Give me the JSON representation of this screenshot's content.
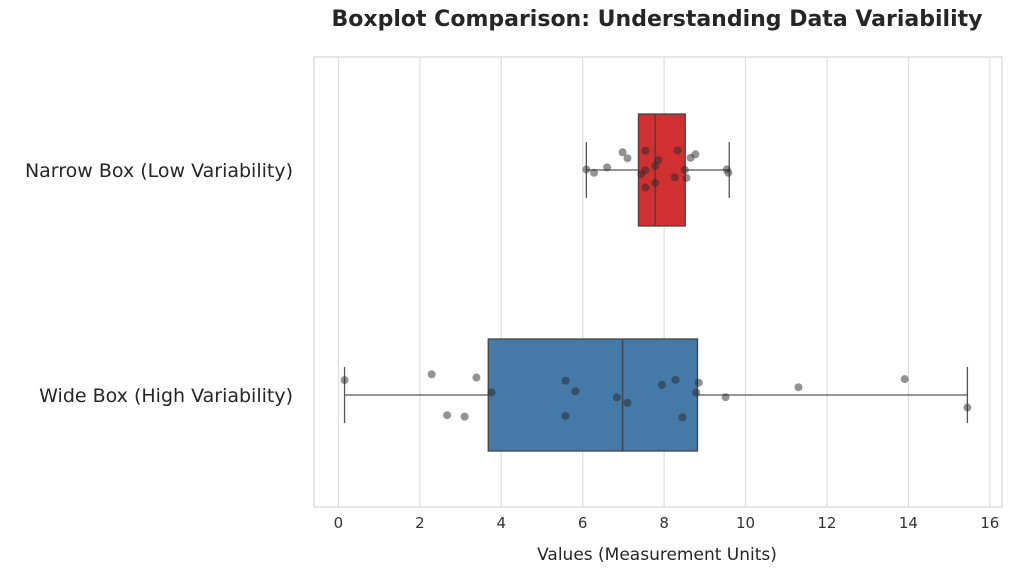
{
  "chart_data": {
    "type": "boxplot",
    "title": "Boxplot Comparison: Understanding Data Variability",
    "xlabel": "Values (Measurement Units)",
    "ylabel": "",
    "xlim": [
      -0.6,
      16.3
    ],
    "xticks": [
      0,
      2,
      4,
      6,
      8,
      10,
      12,
      14,
      16
    ],
    "grid": "vertical",
    "orientation": "horizontal",
    "categories": [
      "Narrow Box (Low Variability)",
      "Wide Box (High Variability)"
    ],
    "series": [
      {
        "category": "Narrow Box (Low Variability)",
        "color": "#d03030",
        "whisker_low": 6.09,
        "q1": 7.37,
        "median": 7.78,
        "q3": 8.52,
        "whisker_high": 9.6,
        "points": [
          6.09,
          6.28,
          6.98,
          7.1,
          6.6,
          7.54,
          7.54,
          7.54,
          7.44,
          7.78,
          7.86,
          7.78,
          8.26,
          8.33,
          8.51,
          8.65,
          8.55,
          8.77,
          9.58,
          9.54
        ]
      },
      {
        "category": "Wide Box (High Variability)",
        "color": "#4479a8",
        "whisker_low": 0.15,
        "q1": 3.68,
        "median": 6.98,
        "q3": 8.82,
        "whisker_high": 15.45,
        "points": [
          0.15,
          2.29,
          2.67,
          3.1,
          3.39,
          3.76,
          5.58,
          5.58,
          5.82,
          6.84,
          7.1,
          7.95,
          8.28,
          8.45,
          8.79,
          8.85,
          9.51,
          11.3,
          13.91,
          15.45
        ]
      }
    ]
  }
}
